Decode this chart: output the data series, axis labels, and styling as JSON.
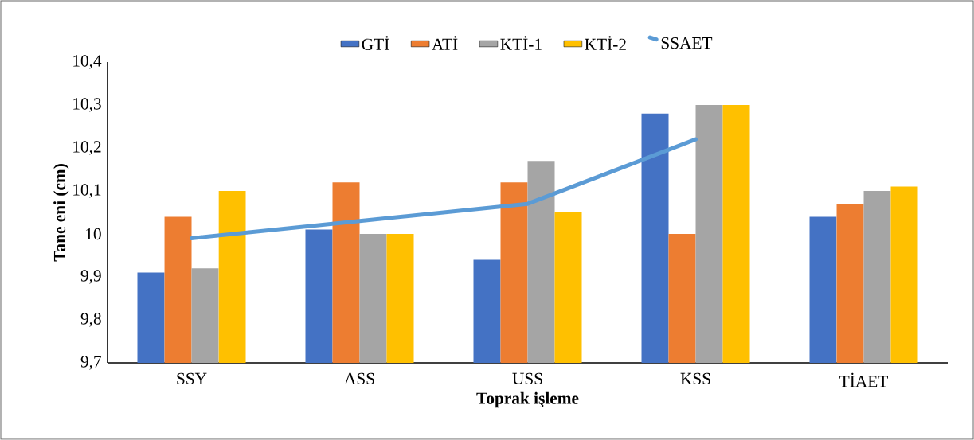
{
  "chart_data": {
    "type": "bar",
    "xlabel": "Toprak işleme",
    "ylabel": "Tane eni (cm)",
    "categories": [
      "SSY",
      "ASS",
      "USS",
      "KSS",
      "TİAET"
    ],
    "series": [
      {
        "name": "GTİ",
        "color": "#4472c4",
        "values": [
          9.91,
          10.01,
          9.94,
          10.28,
          10.04
        ]
      },
      {
        "name": "ATİ",
        "color": "#ed7d31",
        "values": [
          10.04,
          10.12,
          10.12,
          10.0,
          10.07
        ]
      },
      {
        "name": "KTİ-1",
        "color": "#a5a5a5",
        "values": [
          9.92,
          10.0,
          10.17,
          10.3,
          10.1
        ]
      },
      {
        "name": "KTİ-2",
        "color": "#ffc000",
        "values": [
          10.1,
          10.0,
          10.05,
          10.3,
          10.11
        ]
      },
      {
        "name": "SSAET",
        "color": "#5b9bd5",
        "type": "line",
        "values": [
          9.99,
          10.03,
          10.07,
          10.22,
          null
        ]
      }
    ],
    "ylim": [
      9.7,
      10.4
    ],
    "yticks": [
      {
        "value": 9.7,
        "label": "9,7"
      },
      {
        "value": 9.8,
        "label": "9,8"
      },
      {
        "value": 9.9,
        "label": "9,9"
      },
      10,
      {
        "value": 10.1,
        "label": "10,1"
      },
      {
        "value": 10.2,
        "label": "10,2"
      },
      {
        "value": 10.3,
        "label": "10,3"
      },
      {
        "value": 10.4,
        "label": "10,4"
      }
    ],
    "grid": false,
    "legend": "top",
    "marker": "none",
    "line_style": "solid"
  }
}
